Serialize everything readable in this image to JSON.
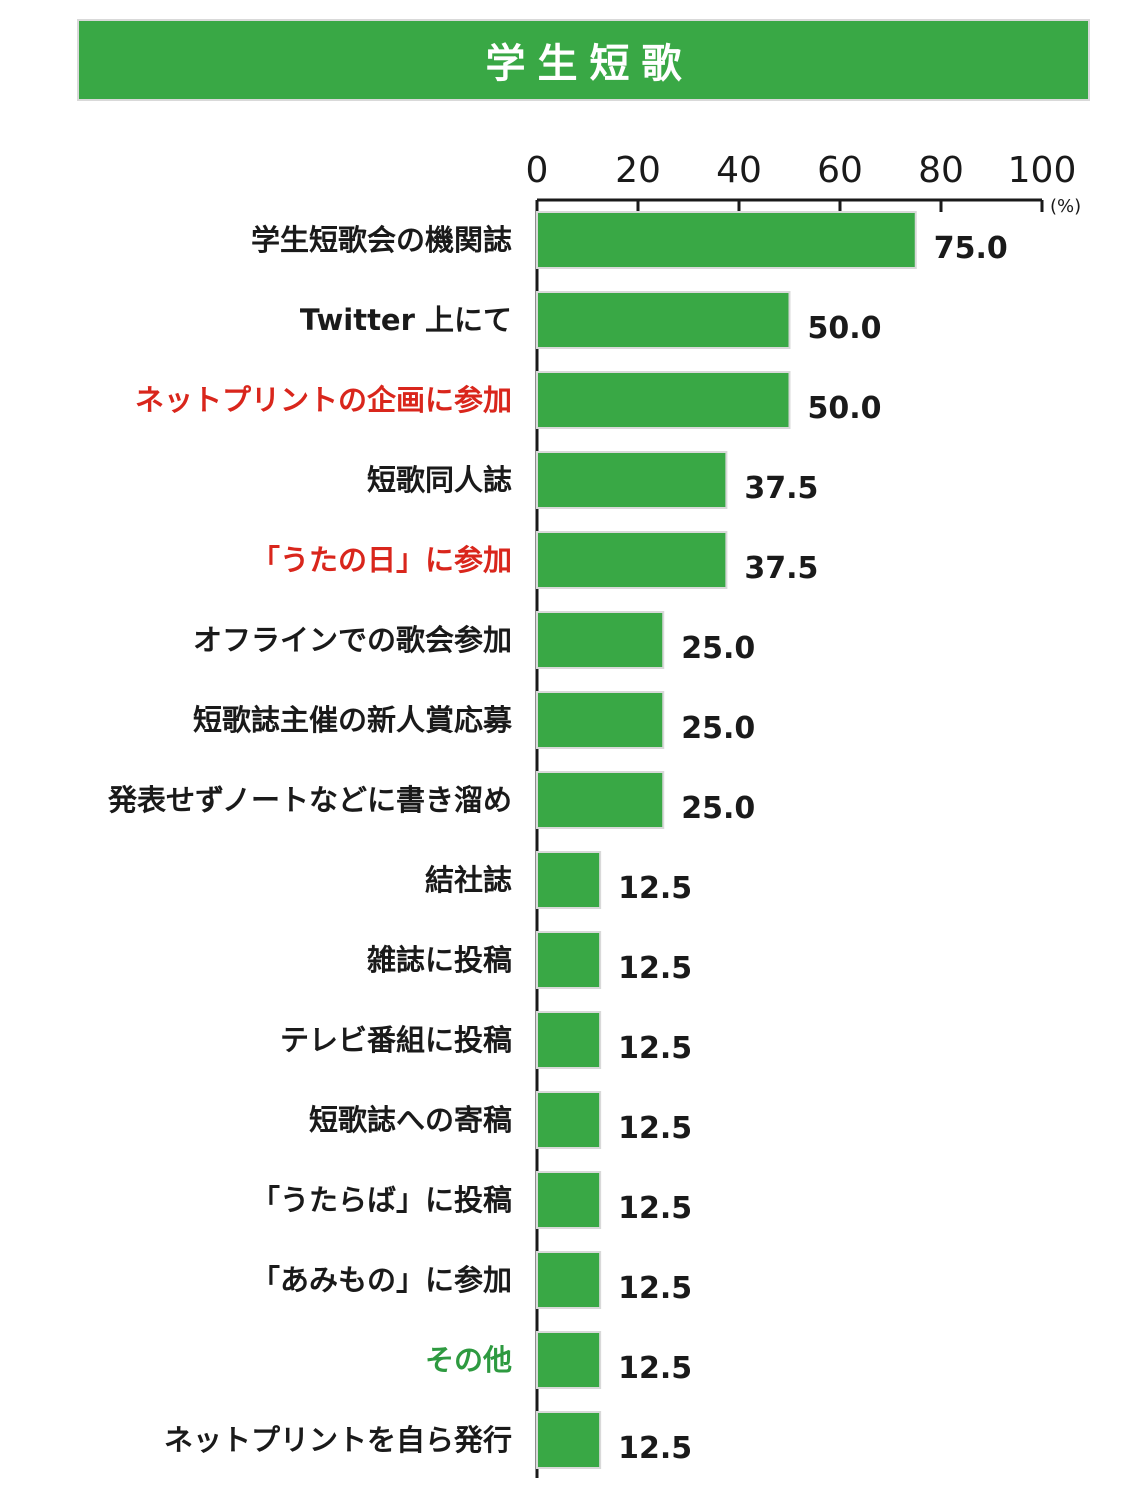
{
  "title": "学生短歌",
  "colors": {
    "bar": "#39a845",
    "bar_border": "#d9d9d9",
    "default_label": "#1a1a1a",
    "highlight_red": "#d9261c",
    "highlight_green": "#2e9a40"
  },
  "chart_data": {
    "type": "bar",
    "orientation": "horizontal",
    "unit": "(%)",
    "xlim": [
      0,
      100
    ],
    "xticks": [
      0,
      20,
      40,
      60,
      80,
      100
    ],
    "categories": [
      "学生短歌会の機関誌",
      "Twitter 上にて",
      "ネットプリントの企画に参加",
      "短歌同人誌",
      "「うたの日」に参加",
      "オフラインでの歌会参加",
      "短歌誌主催の新人賞応募",
      "発表せずノートなどに書き溜め",
      "結社誌",
      "雑誌に投稿",
      "テレビ番組に投稿",
      "短歌誌への寄稿",
      "「うたらば」に投稿",
      "「あみもの」に参加",
      "その他",
      "ネットプリントを自ら発行"
    ],
    "values": [
      75.0,
      50.0,
      50.0,
      37.5,
      37.5,
      25.0,
      25.0,
      25.0,
      12.5,
      12.5,
      12.5,
      12.5,
      12.5,
      12.5,
      12.5,
      12.5
    ],
    "value_labels": [
      "75.0",
      "50.0",
      "50.0",
      "37.5",
      "37.5",
      "25.0",
      "25.0",
      "25.0",
      "12.5",
      "12.5",
      "12.5",
      "12.5",
      "12.5",
      "12.5",
      "12.5",
      "12.5"
    ],
    "label_colors": [
      "default",
      "default",
      "red",
      "default",
      "red",
      "default",
      "default",
      "default",
      "default",
      "default",
      "default",
      "default",
      "default",
      "default",
      "green",
      "default"
    ],
    "grid": false,
    "legend": "none"
  }
}
